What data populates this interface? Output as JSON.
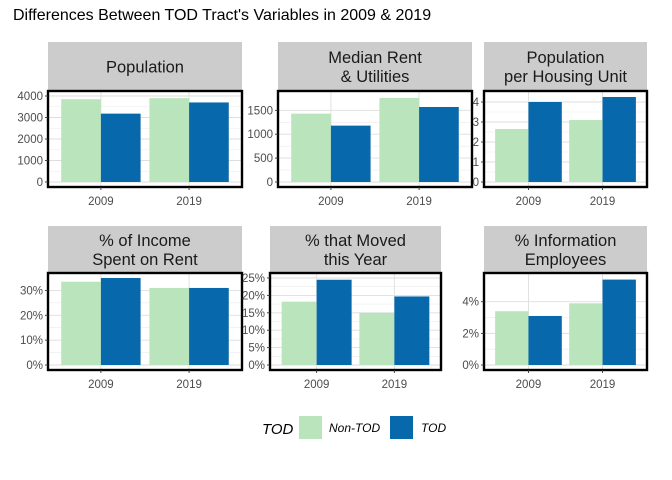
{
  "title": "Differences Between TOD Tract's Variables in 2009 & 2019",
  "chart_data": {
    "type": "bar",
    "categories": [
      "2009",
      "2019"
    ],
    "legend": {
      "title": "TOD",
      "position": "bottom",
      "entries": [
        {
          "label": "Non-TOD",
          "color": "#bae4bc"
        },
        {
          "label": "TOD",
          "color": "#0868ac"
        }
      ]
    },
    "grid": true,
    "panels": [
      {
        "strip": [
          "Population"
        ],
        "ylim": [
          0,
          4000
        ],
        "ticks": [
          0,
          1000,
          2000,
          3000,
          4000
        ],
        "tick_labels": [
          "0",
          "1000",
          "2000",
          "3000",
          "4000"
        ],
        "series": [
          {
            "name": "Non-TOD",
            "values": [
              3850,
              3900
            ]
          },
          {
            "name": "TOD",
            "values": [
              3180,
              3700
            ]
          }
        ]
      },
      {
        "strip": [
          "Median Rent",
          "& Utilities"
        ],
        "ylim": [
          0,
          1800
        ],
        "ticks": [
          0,
          500,
          1000,
          1500
        ],
        "tick_labels": [
          "0",
          "500",
          "1000",
          "1500"
        ],
        "series": [
          {
            "name": "Non-TOD",
            "values": [
              1430,
              1760
            ]
          },
          {
            "name": "TOD",
            "values": [
              1180,
              1570
            ]
          }
        ]
      },
      {
        "strip": [
          "Population",
          "per Housing Unit"
        ],
        "ylim": [
          0,
          4.3
        ],
        "ticks": [
          0,
          1,
          2,
          3,
          4
        ],
        "tick_labels": [
          "0",
          "1",
          "2",
          "3",
          "4"
        ],
        "series": [
          {
            "name": "Non-TOD",
            "values": [
              2.65,
              3.1
            ]
          },
          {
            "name": "TOD",
            "values": [
              4.0,
              4.25
            ]
          }
        ]
      },
      {
        "strip": [
          "% of Income",
          "Spent on Rent"
        ],
        "ylim": [
          0,
          0.35
        ],
        "ticks": [
          0,
          0.1,
          0.2,
          0.3
        ],
        "tick_labels": [
          "0%",
          "10%",
          "20%",
          "30%"
        ],
        "series": [
          {
            "name": "Non-TOD",
            "values": [
              0.335,
              0.31
            ]
          },
          {
            "name": "TOD",
            "values": [
              0.35,
              0.31
            ]
          }
        ]
      },
      {
        "strip": [
          "% that Moved",
          "this Year"
        ],
        "ylim": [
          0,
          0.25
        ],
        "ticks": [
          0,
          0.05,
          0.1,
          0.15,
          0.2,
          0.25
        ],
        "tick_labels": [
          "0%",
          "5%",
          "10%",
          "15%",
          "20%",
          "25%"
        ],
        "series": [
          {
            "name": "Non-TOD",
            "values": [
              0.182,
              0.15
            ]
          },
          {
            "name": "TOD",
            "values": [
              0.245,
              0.197
            ]
          }
        ]
      },
      {
        "strip": [
          "% Information",
          "Employees"
        ],
        "ylim": [
          0,
          0.055
        ],
        "ticks": [
          0,
          0.02,
          0.04
        ],
        "tick_labels": [
          "0%",
          "2%",
          "4%"
        ],
        "series": [
          {
            "name": "Non-TOD",
            "values": [
              0.034,
              0.039
            ]
          },
          {
            "name": "TOD",
            "values": [
              0.031,
              0.054
            ]
          }
        ]
      }
    ]
  }
}
